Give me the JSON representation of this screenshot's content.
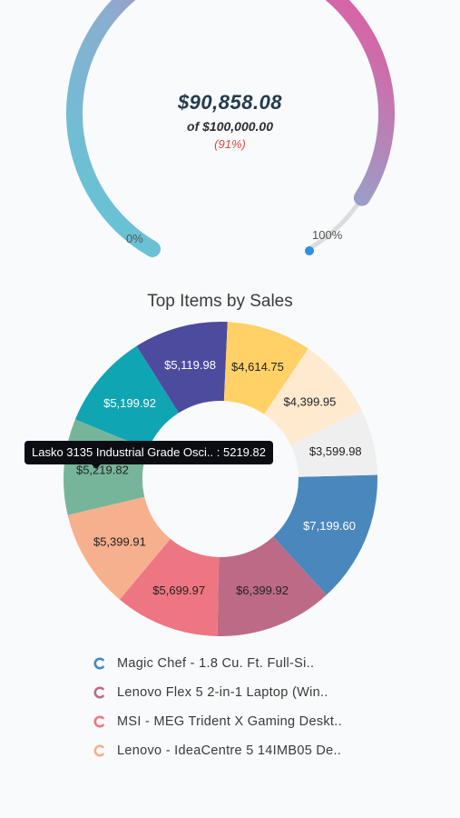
{
  "gauge": {
    "amount": "$90,858.08",
    "target": "of $100,000.00",
    "percent_text": "(91%)",
    "value": 90858.08,
    "max": 100000,
    "min_label": "0%",
    "max_label": "100%",
    "colors": {
      "start": "#5fc8d6",
      "mid": "#8aaed0",
      "end": "#f24a97",
      "track": "#dcdcdc",
      "marker": "#2f8fe0"
    }
  },
  "chart_data": {
    "type": "pie",
    "title": "Top Items by Sales",
    "values": [
      7199.6,
      6399.92,
      5699.97,
      5399.91,
      5219.82,
      5199.92,
      5119.98,
      4614.75,
      4399.95,
      3599.98
    ],
    "labels": [
      "$7,199.60",
      "$6,399.92",
      "$5,699.97",
      "$5,399.91",
      "$5,219.82",
      "$5,199.92",
      "$5,119.98",
      "$4,614.75",
      "$4,399.95",
      "$3,599.98"
    ],
    "colors": [
      "#4a87bd",
      "#bd6a86",
      "#ee7682",
      "#f7b08e",
      "#77b59b",
      "#10a5b3",
      "#4d4b9e",
      "#ffd166",
      "#ffead0",
      "#efefef"
    ],
    "tooltip": "Lasko 3135 Industrial Grade Osci.. : 5219.82",
    "legend": [
      {
        "label": "Magic Chef - 1.8 Cu. Ft. Full-Si..",
        "color": "#4a87bd"
      },
      {
        "label": "Lenovo Flex 5 2-in-1 Laptop (Win..",
        "color": "#bd6a86"
      },
      {
        "label": "MSI - MEG Trident X Gaming Deskt..",
        "color": "#ee7682"
      },
      {
        "label": "Lenovo - IdeaCentre 5 14IMB05 De..",
        "color": "#f7b08e"
      }
    ]
  }
}
